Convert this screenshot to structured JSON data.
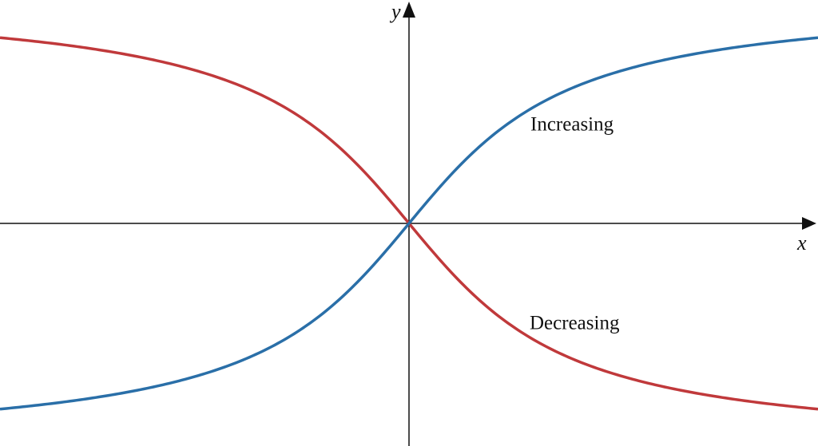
{
  "axes": {
    "x_label": "x",
    "y_label": "y"
  },
  "curves": [
    {
      "label": "Increasing"
    },
    {
      "label": "Decreasing"
    }
  ]
}
